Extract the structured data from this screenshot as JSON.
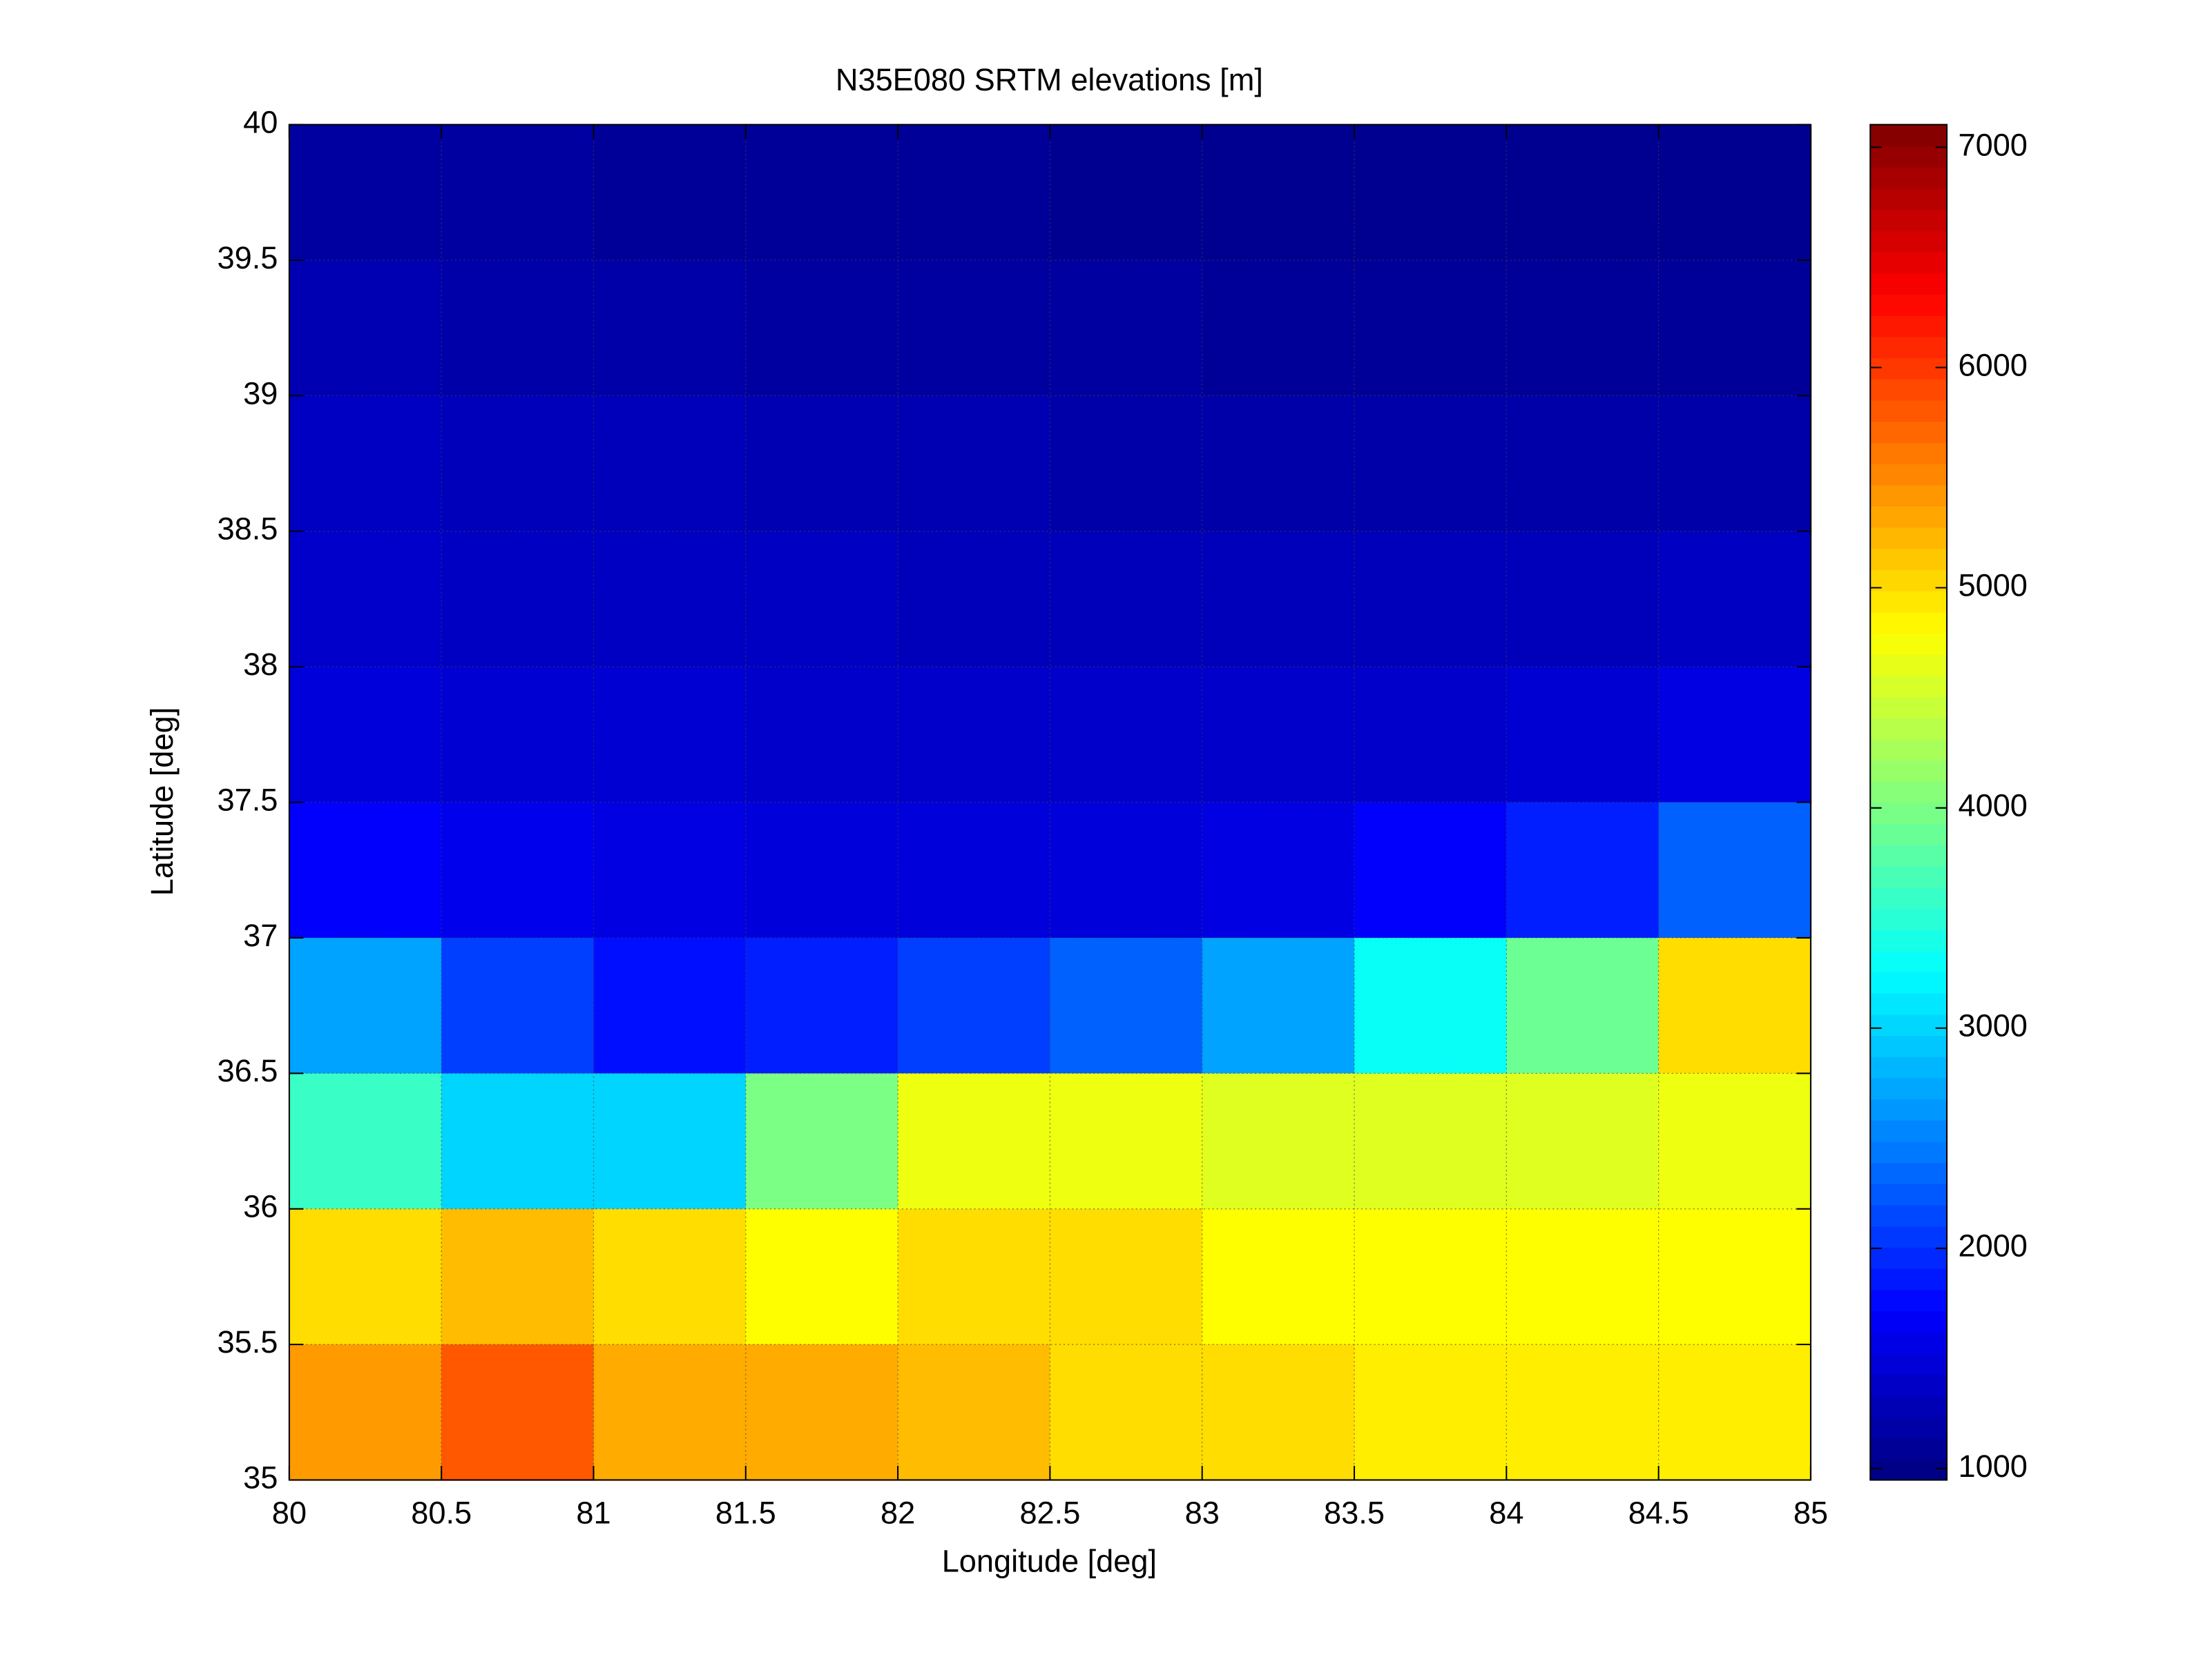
{
  "chart_data": {
    "type": "heatmap",
    "title": "N35E080 SRTM elevations [m]",
    "x_label": "Longitude [deg]",
    "y_label": "Latitude [deg]",
    "colormap": "jet",
    "grid": true,
    "x": [
      80.25,
      80.75,
      81.25,
      81.75,
      82.25,
      82.75,
      83.25,
      83.75,
      84.25,
      84.75
    ],
    "y": [
      39.75,
      39.25,
      38.75,
      38.25,
      37.75,
      37.25,
      36.75,
      36.25,
      35.75,
      35.25
    ],
    "z": [
      [
        1150,
        1150,
        1100,
        1100,
        1100,
        1050,
        1050,
        1050,
        1050,
        1050
      ],
      [
        1250,
        1200,
        1200,
        1150,
        1150,
        1150,
        1100,
        1100,
        1100,
        1100
      ],
      [
        1350,
        1300,
        1300,
        1250,
        1250,
        1200,
        1200,
        1200,
        1200,
        1200
      ],
      [
        1400,
        1350,
        1350,
        1350,
        1300,
        1300,
        1300,
        1300,
        1300,
        1350
      ],
      [
        1500,
        1450,
        1450,
        1400,
        1400,
        1400,
        1400,
        1400,
        1450,
        1550
      ],
      [
        1700,
        1600,
        1550,
        1500,
        1500,
        1500,
        1550,
        1700,
        1900,
        2300
      ],
      [
        2700,
        2100,
        1800,
        1900,
        2100,
        2300,
        2700,
        3300,
        3900,
        5000
      ],
      [
        3600,
        3000,
        3000,
        4000,
        4700,
        4700,
        4600,
        4600,
        4600,
        4700
      ],
      [
        5000,
        5200,
        5000,
        4800,
        5000,
        5000,
        4800,
        4800,
        4800,
        4800
      ],
      [
        5400,
        5800,
        5300,
        5300,
        5200,
        5000,
        5000,
        4900,
        4900,
        4900
      ]
    ],
    "xlim": [
      80,
      85
    ],
    "ylim": [
      35,
      40
    ],
    "xticks": [
      80,
      80.5,
      81,
      81.5,
      82,
      82.5,
      83,
      83.5,
      84,
      84.5,
      85
    ],
    "yticks": [
      35,
      35.5,
      36,
      36.5,
      37,
      37.5,
      38,
      38.5,
      39,
      39.5,
      40
    ],
    "clim": [
      948,
      7103
    ],
    "cticks": [
      1000,
      2000,
      3000,
      4000,
      5000,
      6000,
      7000
    ]
  }
}
